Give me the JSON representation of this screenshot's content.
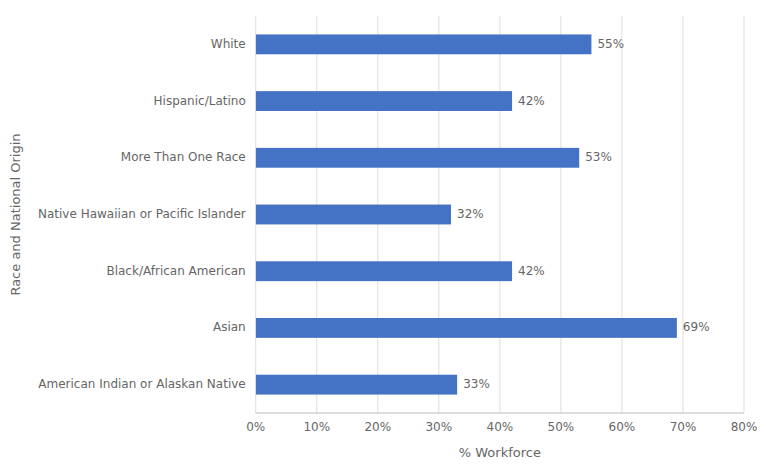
{
  "chart_data": {
    "type": "bar",
    "orientation": "horizontal",
    "categories": [
      "American Indian or Alaskan Native",
      "Asian",
      "Black/African American",
      "Native Hawaiian or Pacific Islander",
      "More Than One Race",
      "Hispanic/Latino",
      "White"
    ],
    "values": [
      33,
      69,
      42,
      32,
      53,
      42,
      55
    ],
    "value_labels": [
      "33%",
      "69%",
      "42%",
      "32%",
      "53%",
      "42%",
      "55%"
    ],
    "data_labels": true,
    "color": "#4472C4",
    "xlabel": "% Workforce",
    "ylabel": "Race and National Origin",
    "xlim": [
      0,
      80
    ],
    "xticks": [
      {
        "value": 0,
        "label": "0%"
      },
      {
        "value": 10,
        "label": "10%"
      },
      {
        "value": 20,
        "label": "20%"
      },
      {
        "value": 30,
        "label": "30%"
      },
      {
        "value": 40,
        "label": "40%"
      },
      {
        "value": 50,
        "label": "50%"
      },
      {
        "value": 60,
        "label": "60%"
      },
      {
        "value": 70,
        "label": "70%"
      },
      {
        "value": 80,
        "label": "80%"
      }
    ],
    "grid": true
  }
}
